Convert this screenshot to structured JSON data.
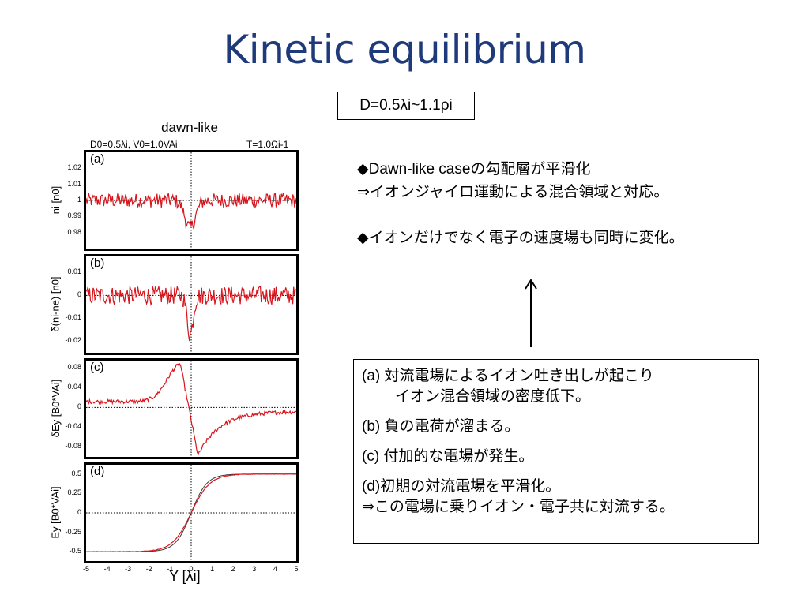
{
  "slide": {
    "title": "Kinetic equilibrium",
    "param_box": "D=0.5λi~1.1ρi",
    "bullets": [
      "◆Dawn-like caseの勾配層が平滑化",
      "⇒イオンジャイロ運動による混合領域と対応。",
      "◆イオンだけでなく電子の速度場も同時に変化。"
    ],
    "explanation": {
      "a_line1": "(a) 対流電場によるイオン吐き出しが起こり",
      "a_line2": "イオン混合領域の密度低下。",
      "b": "(b) 負の電荷が溜まる。",
      "c": "(c) 付加的な電場が発生。",
      "d_line1": "(d)初期の対流電場を平滑化。",
      "d_line2": "⇒この電場に乗りイオン・電子共に対流する。"
    }
  },
  "chart_data": {
    "type": "line",
    "title": "dawn-like",
    "params_left": "D0=0.5λi, V0=1.0VAi",
    "params_right": "T=1.0Ωi-1",
    "xlabel": "Y [λi]",
    "xlim": [
      -5,
      5
    ],
    "xticks": [
      "-5",
      "-4",
      "-3",
      "-2",
      "-1",
      "0",
      "1",
      "2",
      "3",
      "4",
      "5"
    ],
    "colors": {
      "simulation": "#d8141c",
      "reference": "#3a3a3a"
    },
    "panels": [
      {
        "label": "(a)",
        "ylabel": "ni [n0]",
        "ylim": [
          0.97,
          1.03
        ],
        "yticks": [
          "1.02",
          "1.01",
          "1",
          "0.99",
          "0.98"
        ],
        "ref_line": 1.0,
        "shape": "noise_dip",
        "noise": 0.0045,
        "dip_center": -0.05,
        "dip_depth": 0.017,
        "dip_width": 0.35
      },
      {
        "label": "(b)",
        "ylabel": "δ(ni-ne) [n0]",
        "ylim": [
          -0.025,
          0.017
        ],
        "yticks": [
          "0.01",
          "0",
          "-0.01",
          "-0.02"
        ],
        "ref_line": 0.0,
        "shape": "noise_dip",
        "noise": 0.004,
        "dip_center": -0.05,
        "dip_depth": 0.017,
        "dip_width": 0.2
      },
      {
        "label": "(c)",
        "ylabel": "δEy [B0*VAi]",
        "ylim": [
          -0.1,
          0.095
        ],
        "yticks": [
          "0.08",
          "0.04",
          "0",
          "-0.04",
          "-0.08"
        ],
        "ref_line": 0.0,
        "shape": "bipolar",
        "peak": 0.085,
        "trough": -0.092,
        "noise": 0.004
      },
      {
        "label": "(d)",
        "ylabel": "Ey [B0*VAi]",
        "ylim": [
          -0.62,
          0.62
        ],
        "yticks": [
          "0.5",
          "0.25",
          "0",
          "-0.25",
          "-0.5"
        ],
        "ref_line": 0.0,
        "shape": "tanh",
        "amplitude": 0.5
      }
    ]
  }
}
